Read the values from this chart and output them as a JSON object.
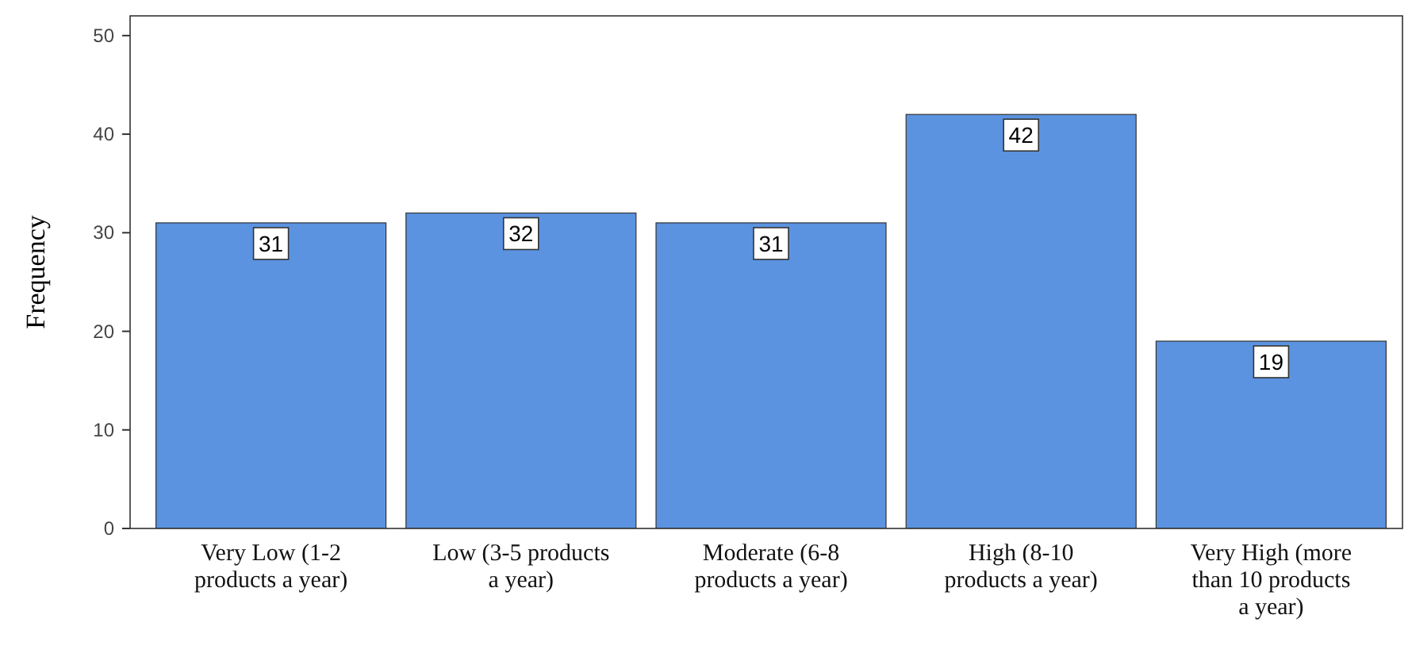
{
  "chart_data": {
    "type": "bar",
    "ylabel": "Frequency",
    "categories": [
      "Very Low (1-2 products a year)",
      "Low (3-5 products a year)",
      "Moderate (6-8 products a year)",
      "High (8-10 products a year)",
      "Very High (more than 10 products a year)"
    ],
    "values": [
      31,
      32,
      31,
      42,
      19
    ],
    "color": "#5b93e0",
    "ylim": [
      0,
      52
    ],
    "yticks": [
      0,
      10,
      20,
      30,
      40,
      50
    ],
    "grid": false,
    "data_labels": true
  }
}
